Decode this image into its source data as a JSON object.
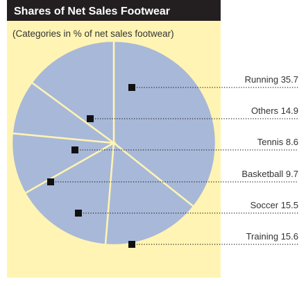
{
  "chart_data": {
    "type": "pie",
    "title": "Shares of Net Sales Footwear",
    "subtitle": "(Categories in % of net sales footwear)",
    "categories": [
      "Running",
      "Others",
      "Tennis",
      "Basketball",
      "Soccer",
      "Training"
    ],
    "values": [
      35.7,
      14.9,
      8.6,
      9.7,
      15.5,
      15.6
    ],
    "color": "#a8b8d8"
  }
}
